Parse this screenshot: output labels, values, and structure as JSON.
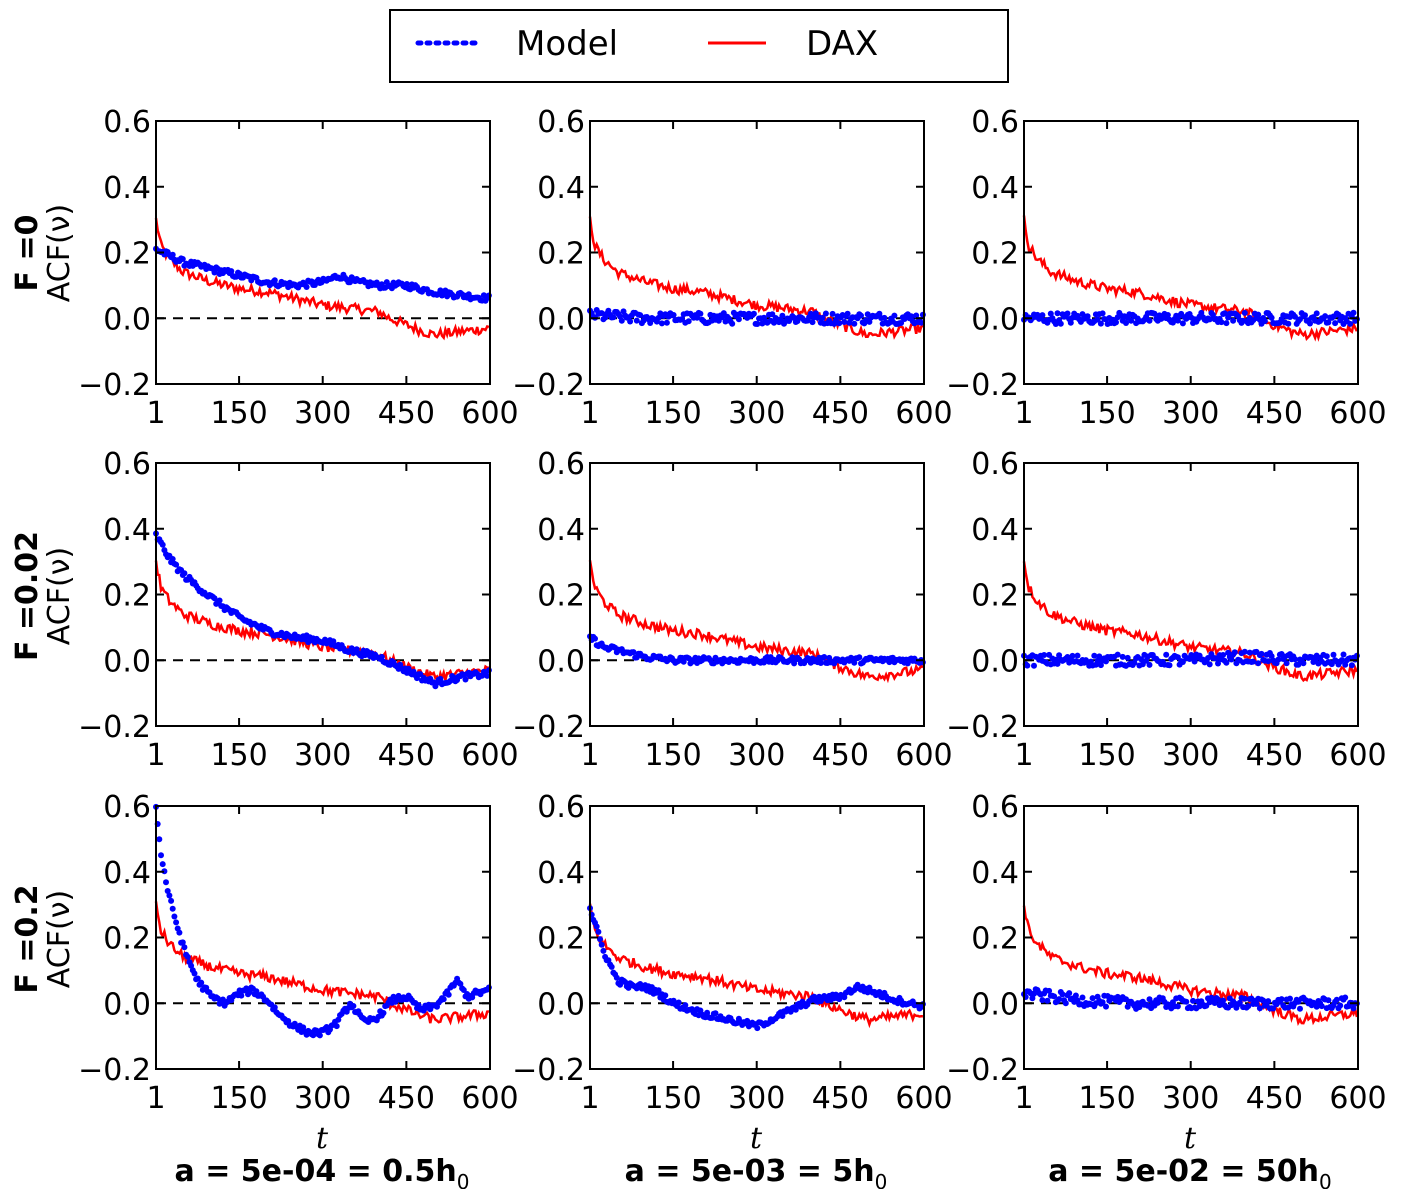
{
  "legend": {
    "model_label": "Model",
    "dax_label": "DAX",
    "placement": "top-center",
    "model_color": "#0000ff",
    "dax_color": "#ff0000"
  },
  "rows": [
    {
      "prefix": "F =",
      "value": "0",
      "ylabel": "ACF(ν)"
    },
    {
      "prefix": "F =",
      "value": "0.02",
      "ylabel": "ACF(ν)"
    },
    {
      "prefix": "F =",
      "value": "0.2",
      "ylabel": "ACF(ν)"
    }
  ],
  "cols": [
    {
      "xlabel": "t",
      "label": "a = 5e-04 = 0.5h",
      "sub": "0"
    },
    {
      "xlabel": "t",
      "label": "a = 5e-03 = 5h",
      "sub": "0"
    },
    {
      "xlabel": "t",
      "label": "a = 5e-02 = 50h",
      "sub": "0"
    }
  ],
  "chart_data": {
    "type": "line",
    "layout": "3x3 grid",
    "xlim": [
      1,
      600
    ],
    "ylim": [
      -0.2,
      0.6
    ],
    "xticks": [
      1,
      150,
      300,
      450,
      600
    ],
    "yticks": [
      -0.2,
      0.0,
      0.2,
      0.4,
      0.6
    ],
    "ytick_labels": [
      "−0.2",
      "0.0",
      "0.2",
      "0.4",
      "0.6"
    ],
    "reference_line": 0.0,
    "dax_series": {
      "name": "DAX",
      "style": "solid",
      "x": [
        1,
        10,
        25,
        50,
        100,
        150,
        200,
        250,
        300,
        350,
        400,
        420,
        450,
        480,
        500,
        550,
        600
      ],
      "y": [
        0.3,
        0.22,
        0.18,
        0.14,
        0.11,
        0.09,
        0.08,
        0.06,
        0.04,
        0.03,
        0.02,
        0.0,
        -0.02,
        -0.04,
        -0.05,
        -0.04,
        -0.03
      ]
    },
    "panels": [
      {
        "row": 0,
        "col": 0,
        "model": {
          "x": [
            1,
            50,
            100,
            150,
            200,
            250,
            300,
            330,
            360,
            400,
            450,
            500,
            550,
            600
          ],
          "y": [
            0.21,
            0.17,
            0.15,
            0.13,
            0.11,
            0.1,
            0.11,
            0.13,
            0.11,
            0.1,
            0.1,
            0.08,
            0.07,
            0.06
          ]
        }
      },
      {
        "row": 0,
        "col": 1,
        "model": {
          "x": [
            1,
            100,
            200,
            300,
            400,
            500,
            600
          ],
          "y": [
            0.01,
            0.0,
            0.0,
            0.0,
            0.0,
            0.0,
            0.0
          ]
        }
      },
      {
        "row": 0,
        "col": 2,
        "model": {
          "x": [
            1,
            100,
            200,
            300,
            400,
            500,
            600
          ],
          "y": [
            0.0,
            0.0,
            0.0,
            0.0,
            0.0,
            0.0,
            0.0
          ]
        }
      },
      {
        "row": 1,
        "col": 0,
        "model": {
          "x": [
            1,
            25,
            50,
            100,
            150,
            200,
            250,
            300,
            350,
            400,
            450,
            500,
            550,
            600
          ],
          "y": [
            0.38,
            0.31,
            0.26,
            0.19,
            0.13,
            0.09,
            0.07,
            0.06,
            0.03,
            0.01,
            -0.03,
            -0.07,
            -0.05,
            -0.04
          ]
        }
      },
      {
        "row": 1,
        "col": 1,
        "model": {
          "x": [
            1,
            25,
            50,
            100,
            150,
            200,
            300,
            400,
            500,
            600
          ],
          "y": [
            0.07,
            0.04,
            0.03,
            0.01,
            0.0,
            0.0,
            0.0,
            0.0,
            0.0,
            0.0
          ]
        }
      },
      {
        "row": 1,
        "col": 2,
        "model": {
          "x": [
            1,
            100,
            200,
            300,
            400,
            500,
            600
          ],
          "y": [
            0.0,
            0.0,
            0.0,
            0.0,
            0.01,
            0.0,
            0.0
          ]
        }
      },
      {
        "row": 2,
        "col": 0,
        "model": {
          "x": [
            1,
            10,
            25,
            50,
            75,
            100,
            125,
            150,
            175,
            200,
            225,
            250,
            275,
            300,
            325,
            350,
            375,
            400,
            425,
            450,
            475,
            500,
            525,
            540,
            560,
            575,
            600
          ],
          "y": [
            0.6,
            0.45,
            0.32,
            0.17,
            0.07,
            0.02,
            0.0,
            0.03,
            0.04,
            0.01,
            -0.04,
            -0.07,
            -0.09,
            -0.09,
            -0.06,
            0.0,
            -0.06,
            -0.04,
            0.01,
            0.02,
            -0.02,
            -0.01,
            0.03,
            0.07,
            0.02,
            0.03,
            0.04
          ]
        }
      },
      {
        "row": 2,
        "col": 1,
        "model": {
          "x": [
            1,
            25,
            50,
            75,
            100,
            125,
            150,
            200,
            250,
            300,
            350,
            400,
            450,
            480,
            500,
            550,
            600
          ],
          "y": [
            0.29,
            0.16,
            0.07,
            0.05,
            0.05,
            0.03,
            0.0,
            -0.03,
            -0.05,
            -0.07,
            -0.03,
            0.01,
            0.02,
            0.05,
            0.04,
            0.01,
            -0.01
          ]
        }
      },
      {
        "row": 2,
        "col": 2,
        "model": {
          "x": [
            1,
            100,
            200,
            300,
            400,
            500,
            600
          ],
          "y": [
            0.03,
            0.01,
            0.0,
            0.0,
            0.0,
            0.0,
            0.0
          ]
        }
      }
    ]
  }
}
